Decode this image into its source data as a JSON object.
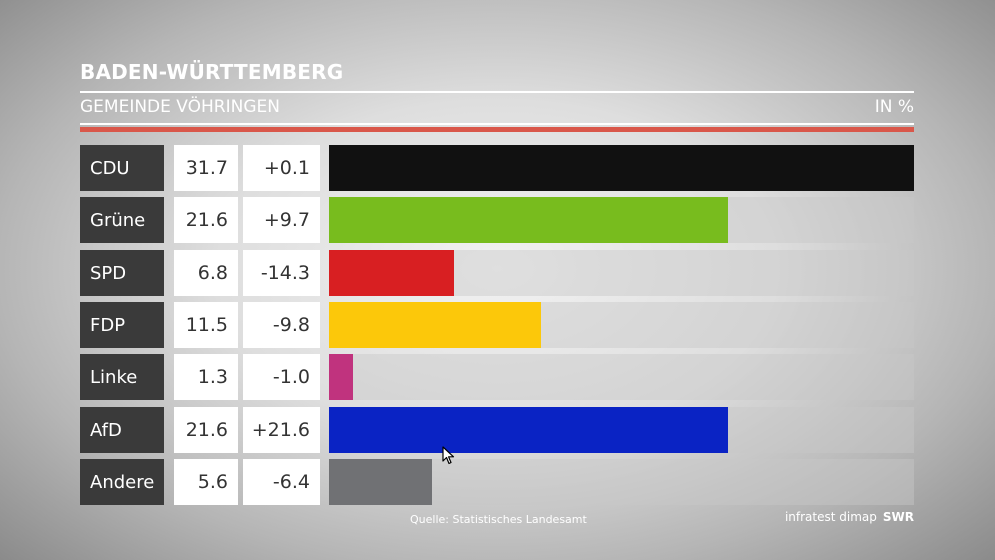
{
  "header": {
    "region": "BADEN-WÜRTTEMBERG",
    "subtitle": "GEMEINDE VÖHRINGEN",
    "unit": "IN %"
  },
  "footer": {
    "source": "Quelle: Statistisches Landesamt",
    "pollster": "infratest dimap",
    "broadcaster": "SWR"
  },
  "colors": {
    "accent_rule": "#d9574a",
    "label_bg": "#3a3a3a"
  },
  "chart_data": {
    "type": "bar",
    "orientation": "horizontal",
    "unit": "IN %",
    "xlim": [
      0,
      31.7
    ],
    "categories": [
      "CDU",
      "Grüne",
      "SPD",
      "FDP",
      "Linke",
      "AfD",
      "Andere"
    ],
    "values": [
      31.7,
      21.6,
      6.8,
      11.5,
      1.3,
      21.6,
      5.6
    ],
    "value_labels": [
      "31.7",
      "21.6",
      "6.8",
      "11.5",
      "1.3",
      "21.6",
      "5.6"
    ],
    "change_labels": [
      "+0.1",
      "+9.7",
      "-14.3",
      "-9.8",
      "-1.0",
      "+21.6",
      "-6.4"
    ],
    "colors": [
      "#111111",
      "#78bc1e",
      "#d81f22",
      "#fcc80a",
      "#c0337e",
      "#0a23c4",
      "#707174"
    ]
  }
}
